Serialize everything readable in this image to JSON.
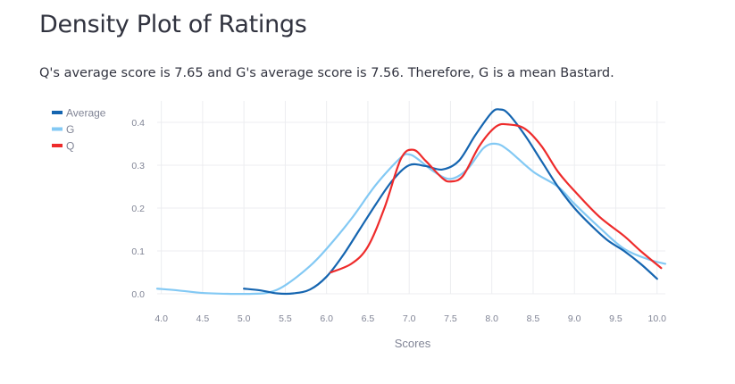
{
  "page": {
    "title": "Density Plot of Ratings",
    "summary": "Q's average score is 7.65 and G's average score is 7.56. Therefore, G is a mean Bastard."
  },
  "chart_data": {
    "type": "line",
    "title": "",
    "xlabel": "Scores",
    "ylabel": "",
    "xlim": [
      3.95,
      10.1
    ],
    "ylim": [
      0,
      0.45
    ],
    "x_ticks": [
      "4.0",
      "4.5",
      "5.0",
      "5.5",
      "6.0",
      "6.5",
      "7.0",
      "7.5",
      "8.0",
      "8.5",
      "9.0",
      "9.5",
      "10.0"
    ],
    "y_ticks": [
      "0.0",
      "0.1",
      "0.2",
      "0.3",
      "0.4"
    ],
    "grid": true,
    "legend_placement": "top-left",
    "series": [
      {
        "name": "Average",
        "color": "#1565b0",
        "points": [
          [
            5.0,
            0.012
          ],
          [
            5.2,
            0.008
          ],
          [
            5.4,
            0.001
          ],
          [
            5.6,
            0.001
          ],
          [
            5.8,
            0.01
          ],
          [
            6.0,
            0.04
          ],
          [
            6.2,
            0.09
          ],
          [
            6.4,
            0.15
          ],
          [
            6.6,
            0.21
          ],
          [
            6.8,
            0.265
          ],
          [
            7.0,
            0.3
          ],
          [
            7.2,
            0.298
          ],
          [
            7.4,
            0.29
          ],
          [
            7.6,
            0.31
          ],
          [
            7.8,
            0.37
          ],
          [
            8.0,
            0.423
          ],
          [
            8.1,
            0.43
          ],
          [
            8.2,
            0.42
          ],
          [
            8.4,
            0.37
          ],
          [
            8.6,
            0.31
          ],
          [
            8.8,
            0.25
          ],
          [
            9.0,
            0.2
          ],
          [
            9.2,
            0.16
          ],
          [
            9.4,
            0.125
          ],
          [
            9.6,
            0.1
          ],
          [
            9.8,
            0.07
          ],
          [
            10.0,
            0.035
          ]
        ]
      },
      {
        "name": "G",
        "color": "#83c9f4",
        "points": [
          [
            3.95,
            0.012
          ],
          [
            4.2,
            0.008
          ],
          [
            4.5,
            0.002
          ],
          [
            4.8,
            0.0
          ],
          [
            5.1,
            0.0
          ],
          [
            5.3,
            0.003
          ],
          [
            5.5,
            0.02
          ],
          [
            5.8,
            0.065
          ],
          [
            6.0,
            0.105
          ],
          [
            6.3,
            0.175
          ],
          [
            6.6,
            0.255
          ],
          [
            6.9,
            0.318
          ],
          [
            7.0,
            0.325
          ],
          [
            7.1,
            0.315
          ],
          [
            7.3,
            0.285
          ],
          [
            7.5,
            0.268
          ],
          [
            7.7,
            0.29
          ],
          [
            7.9,
            0.34
          ],
          [
            8.05,
            0.35
          ],
          [
            8.2,
            0.335
          ],
          [
            8.5,
            0.285
          ],
          [
            8.8,
            0.25
          ],
          [
            9.0,
            0.21
          ],
          [
            9.3,
            0.155
          ],
          [
            9.6,
            0.105
          ],
          [
            9.9,
            0.08
          ],
          [
            10.1,
            0.07
          ]
        ]
      },
      {
        "name": "Q",
        "color": "#ee2b2b",
        "points": [
          [
            6.05,
            0.05
          ],
          [
            6.3,
            0.07
          ],
          [
            6.5,
            0.11
          ],
          [
            6.7,
            0.2
          ],
          [
            6.9,
            0.315
          ],
          [
            7.05,
            0.336
          ],
          [
            7.2,
            0.31
          ],
          [
            7.4,
            0.27
          ],
          [
            7.5,
            0.262
          ],
          [
            7.65,
            0.275
          ],
          [
            7.85,
            0.345
          ],
          [
            8.05,
            0.39
          ],
          [
            8.2,
            0.395
          ],
          [
            8.4,
            0.385
          ],
          [
            8.6,
            0.345
          ],
          [
            8.8,
            0.285
          ],
          [
            9.0,
            0.24
          ],
          [
            9.3,
            0.18
          ],
          [
            9.6,
            0.135
          ],
          [
            9.8,
            0.1
          ],
          [
            10.05,
            0.06
          ]
        ]
      }
    ]
  }
}
